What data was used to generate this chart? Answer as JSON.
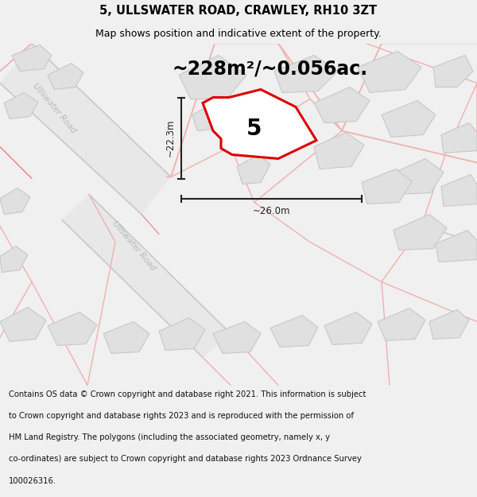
{
  "title": "5, ULLSWATER ROAD, CRAWLEY, RH10 3ZT",
  "subtitle": "Map shows position and indicative extent of the property.",
  "area_text": "~228m²/~0.056ac.",
  "label_number": "5",
  "dim_vertical": "~22.3m",
  "dim_horizontal": "~26.0m",
  "footer_lines": [
    "Contains OS data © Crown copyright and database right 2021. This information is subject",
    "to Crown copyright and database rights 2023 and is reproduced with the permission of",
    "HM Land Registry. The polygons (including the associated geometry, namely x, y",
    "co-ordinates) are subject to Crown copyright and database rights 2023 Ordnance Survey",
    "100026316."
  ],
  "bg_color": "#f0f0f0",
  "map_bg": "#f8f8f8",
  "road_fill": "#e8e8e8",
  "road_edge_dark": "#c8c8c8",
  "road_line_pink": "#f0b0b0",
  "road_line_red": "#e88080",
  "building_fill": "#e0e0e0",
  "building_edge": "#c8c8c8",
  "highlight_fill": "#ffffff",
  "highlight_stroke": "#dd0000",
  "road_label_color": "#b8b8b8",
  "dim_line_color": "#222222",
  "title_fontsize": 10.5,
  "subtitle_fontsize": 9,
  "area_fontsize": 17,
  "label_fontsize": 20,
  "footer_fontsize": 7.2
}
